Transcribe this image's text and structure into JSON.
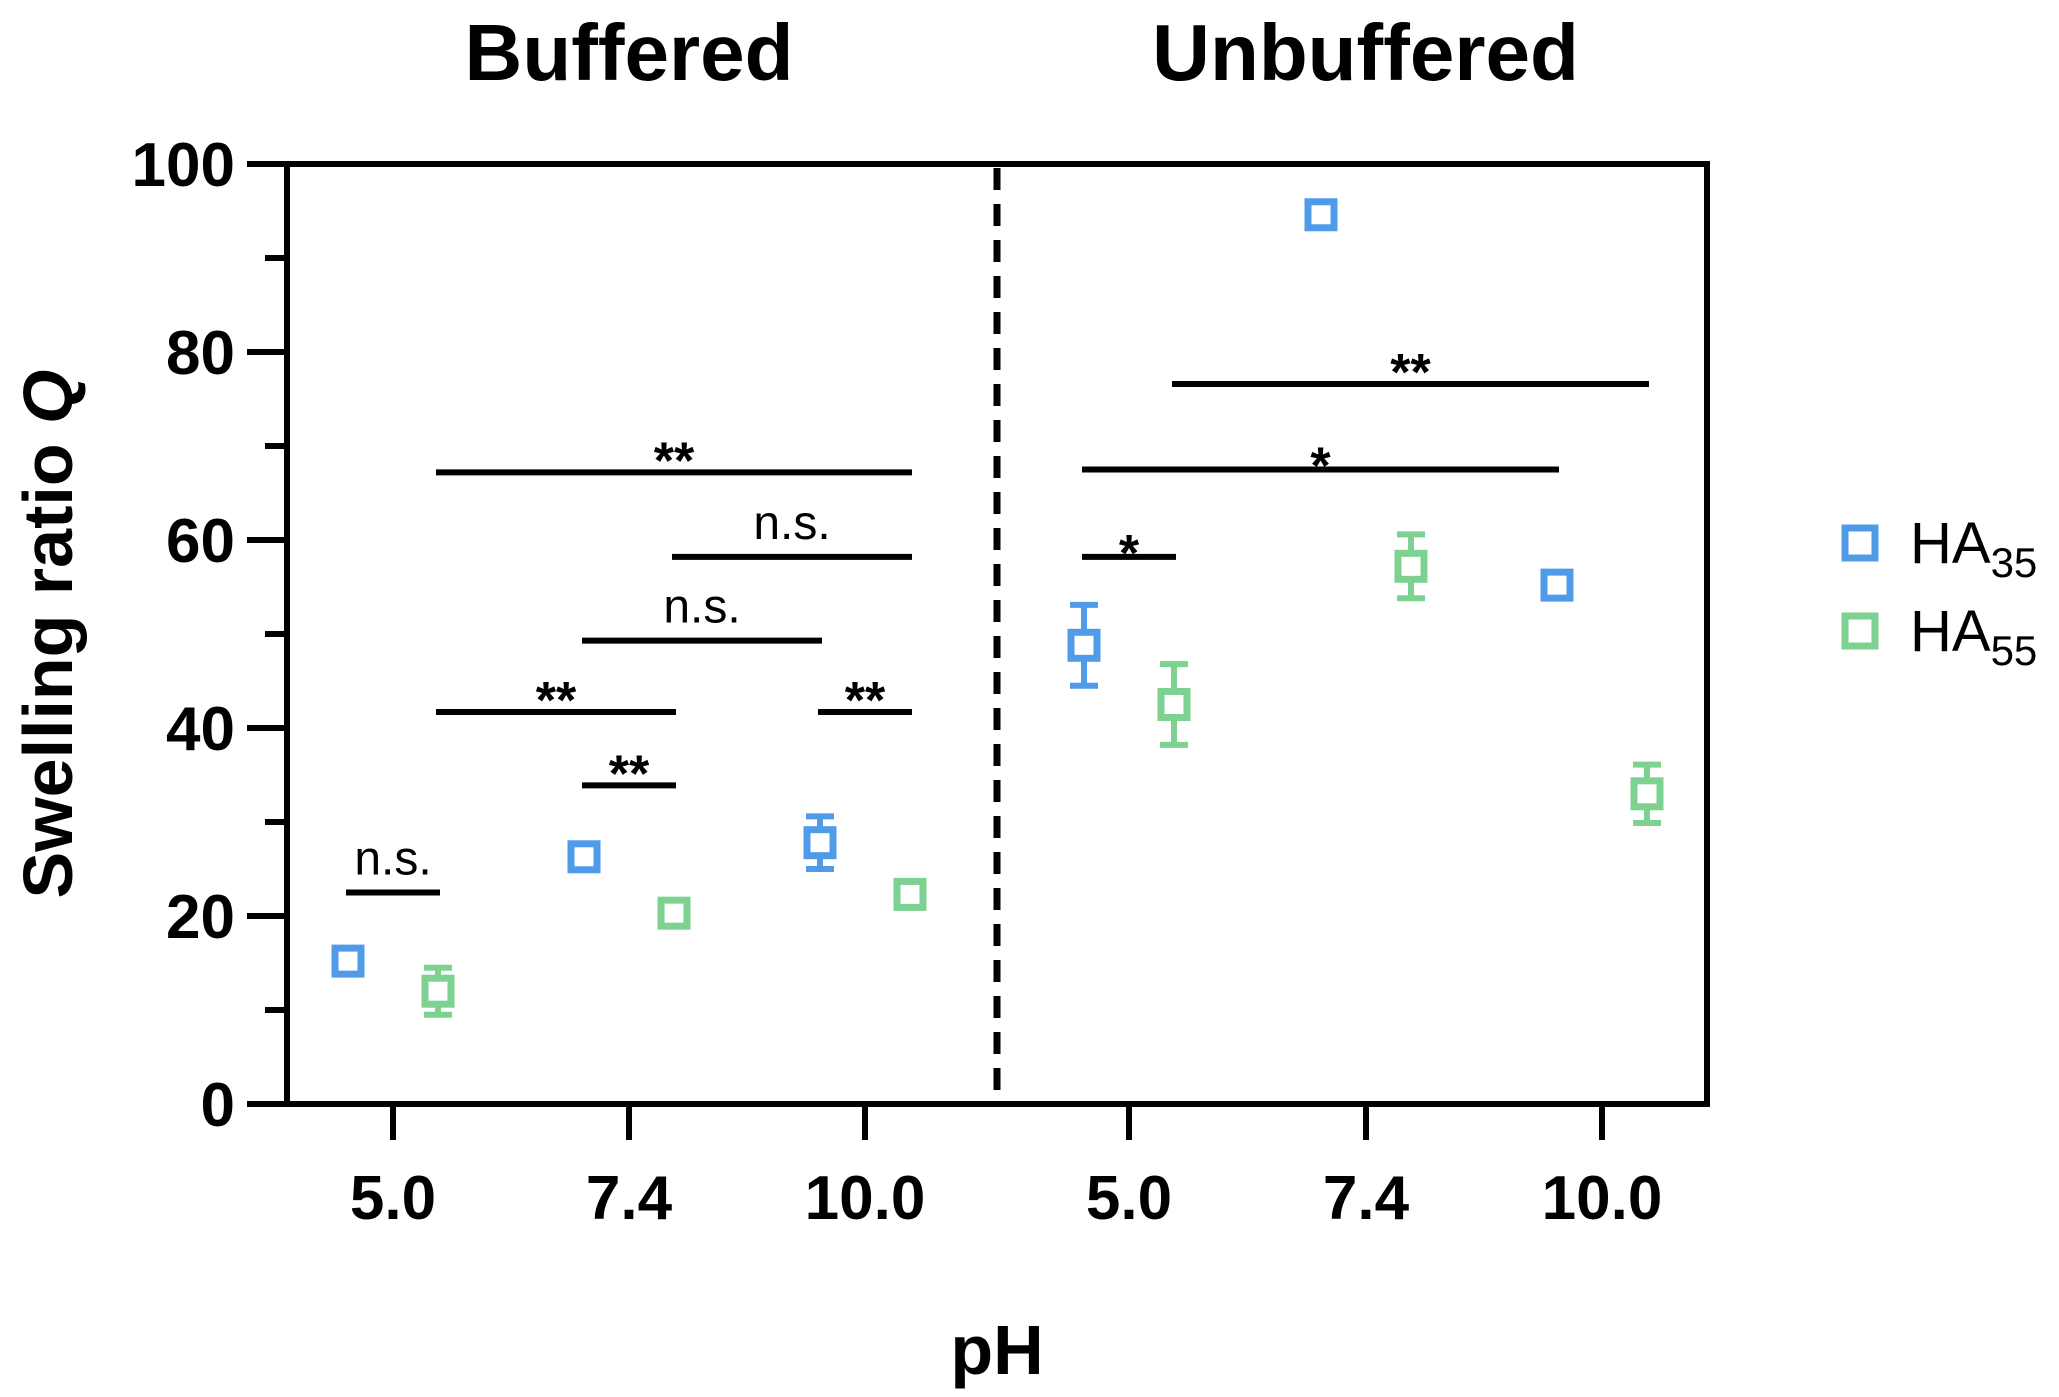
{
  "chart_data": {
    "type": "scatter",
    "panels": [
      {
        "title": "Buffered",
        "categories": [
          "5.0",
          "7.4",
          "10.0"
        ]
      },
      {
        "title": "Unbuffered",
        "categories": [
          "5.0",
          "7.4",
          "10.0"
        ]
      }
    ],
    "xlabel": "pH",
    "ylabel_main": "Swelling ratio ",
    "ylabel_italic": "Q",
    "ylim": [
      0,
      100
    ],
    "yticks": [
      "0",
      "20",
      "40",
      "60",
      "80",
      "100"
    ],
    "grid": false,
    "legend_position": "right",
    "series": [
      {
        "label_main": "HA",
        "label_sub": "35",
        "color": "#4f9be8",
        "points": [
          {
            "panel": 0,
            "cat": 0,
            "y": 15.2,
            "err": 0.8
          },
          {
            "panel": 0,
            "cat": 1,
            "y": 26.3,
            "err": 0.8
          },
          {
            "panel": 0,
            "cat": 2,
            "y": 27.8,
            "err": 2.8
          },
          {
            "panel": 1,
            "cat": 0,
            "y": 48.8,
            "err": 4.3
          },
          {
            "panel": 1,
            "cat": 1,
            "y": 94.6,
            "err": 0.8
          },
          {
            "panel": 1,
            "cat": 2,
            "y": 55.2,
            "err": 0.8
          }
        ]
      },
      {
        "label_main": "HA",
        "label_sub": "55",
        "color": "#7dd191",
        "points": [
          {
            "panel": 0,
            "cat": 0,
            "y": 12.0,
            "err": 2.5
          },
          {
            "panel": 0,
            "cat": 1,
            "y": 20.3,
            "err": 0.8
          },
          {
            "panel": 0,
            "cat": 2,
            "y": 22.3,
            "err": 0.8
          },
          {
            "panel": 1,
            "cat": 0,
            "y": 42.5,
            "err": 4.3
          },
          {
            "panel": 1,
            "cat": 1,
            "y": 57.2,
            "err": 3.4
          },
          {
            "panel": 1,
            "cat": 2,
            "y": 33.0,
            "err": 3.1
          }
        ]
      }
    ],
    "annotations": [
      {
        "text": "n.s.",
        "y": 22.5,
        "from": [
          0,
          0,
          0
        ],
        "to": [
          0,
          0,
          1
        ]
      },
      {
        "text": "**",
        "y": 33.9,
        "from": [
          0,
          1,
          0
        ],
        "to": [
          0,
          1,
          1
        ]
      },
      {
        "text": "**",
        "y": 41.7,
        "from": [
          0,
          0,
          1
        ],
        "to": [
          0,
          1,
          1
        ]
      },
      {
        "text": "**",
        "y": 41.7,
        "from": [
          0,
          2,
          0
        ],
        "to": [
          0,
          2,
          1
        ]
      },
      {
        "text": "n.s.",
        "y": 49.3,
        "from": [
          0,
          1,
          0
        ],
        "to": [
          0,
          2,
          0
        ]
      },
      {
        "text": "n.s.",
        "y": 58.2,
        "from": [
          0,
          1,
          1
        ],
        "to": [
          0,
          2,
          1
        ]
      },
      {
        "text": "**",
        "y": 67.2,
        "from": [
          0,
          0,
          1
        ],
        "to": [
          0,
          2,
          1
        ]
      },
      {
        "text": "*",
        "y": 58.2,
        "from": [
          1,
          0,
          0
        ],
        "to": [
          1,
          0,
          1
        ]
      },
      {
        "text": "*",
        "y": 67.5,
        "from": [
          1,
          0,
          0
        ],
        "to": [
          1,
          2,
          0
        ]
      },
      {
        "text": "**",
        "y": 76.6,
        "from": [
          1,
          0,
          1
        ],
        "to": [
          1,
          2,
          1
        ]
      }
    ]
  }
}
